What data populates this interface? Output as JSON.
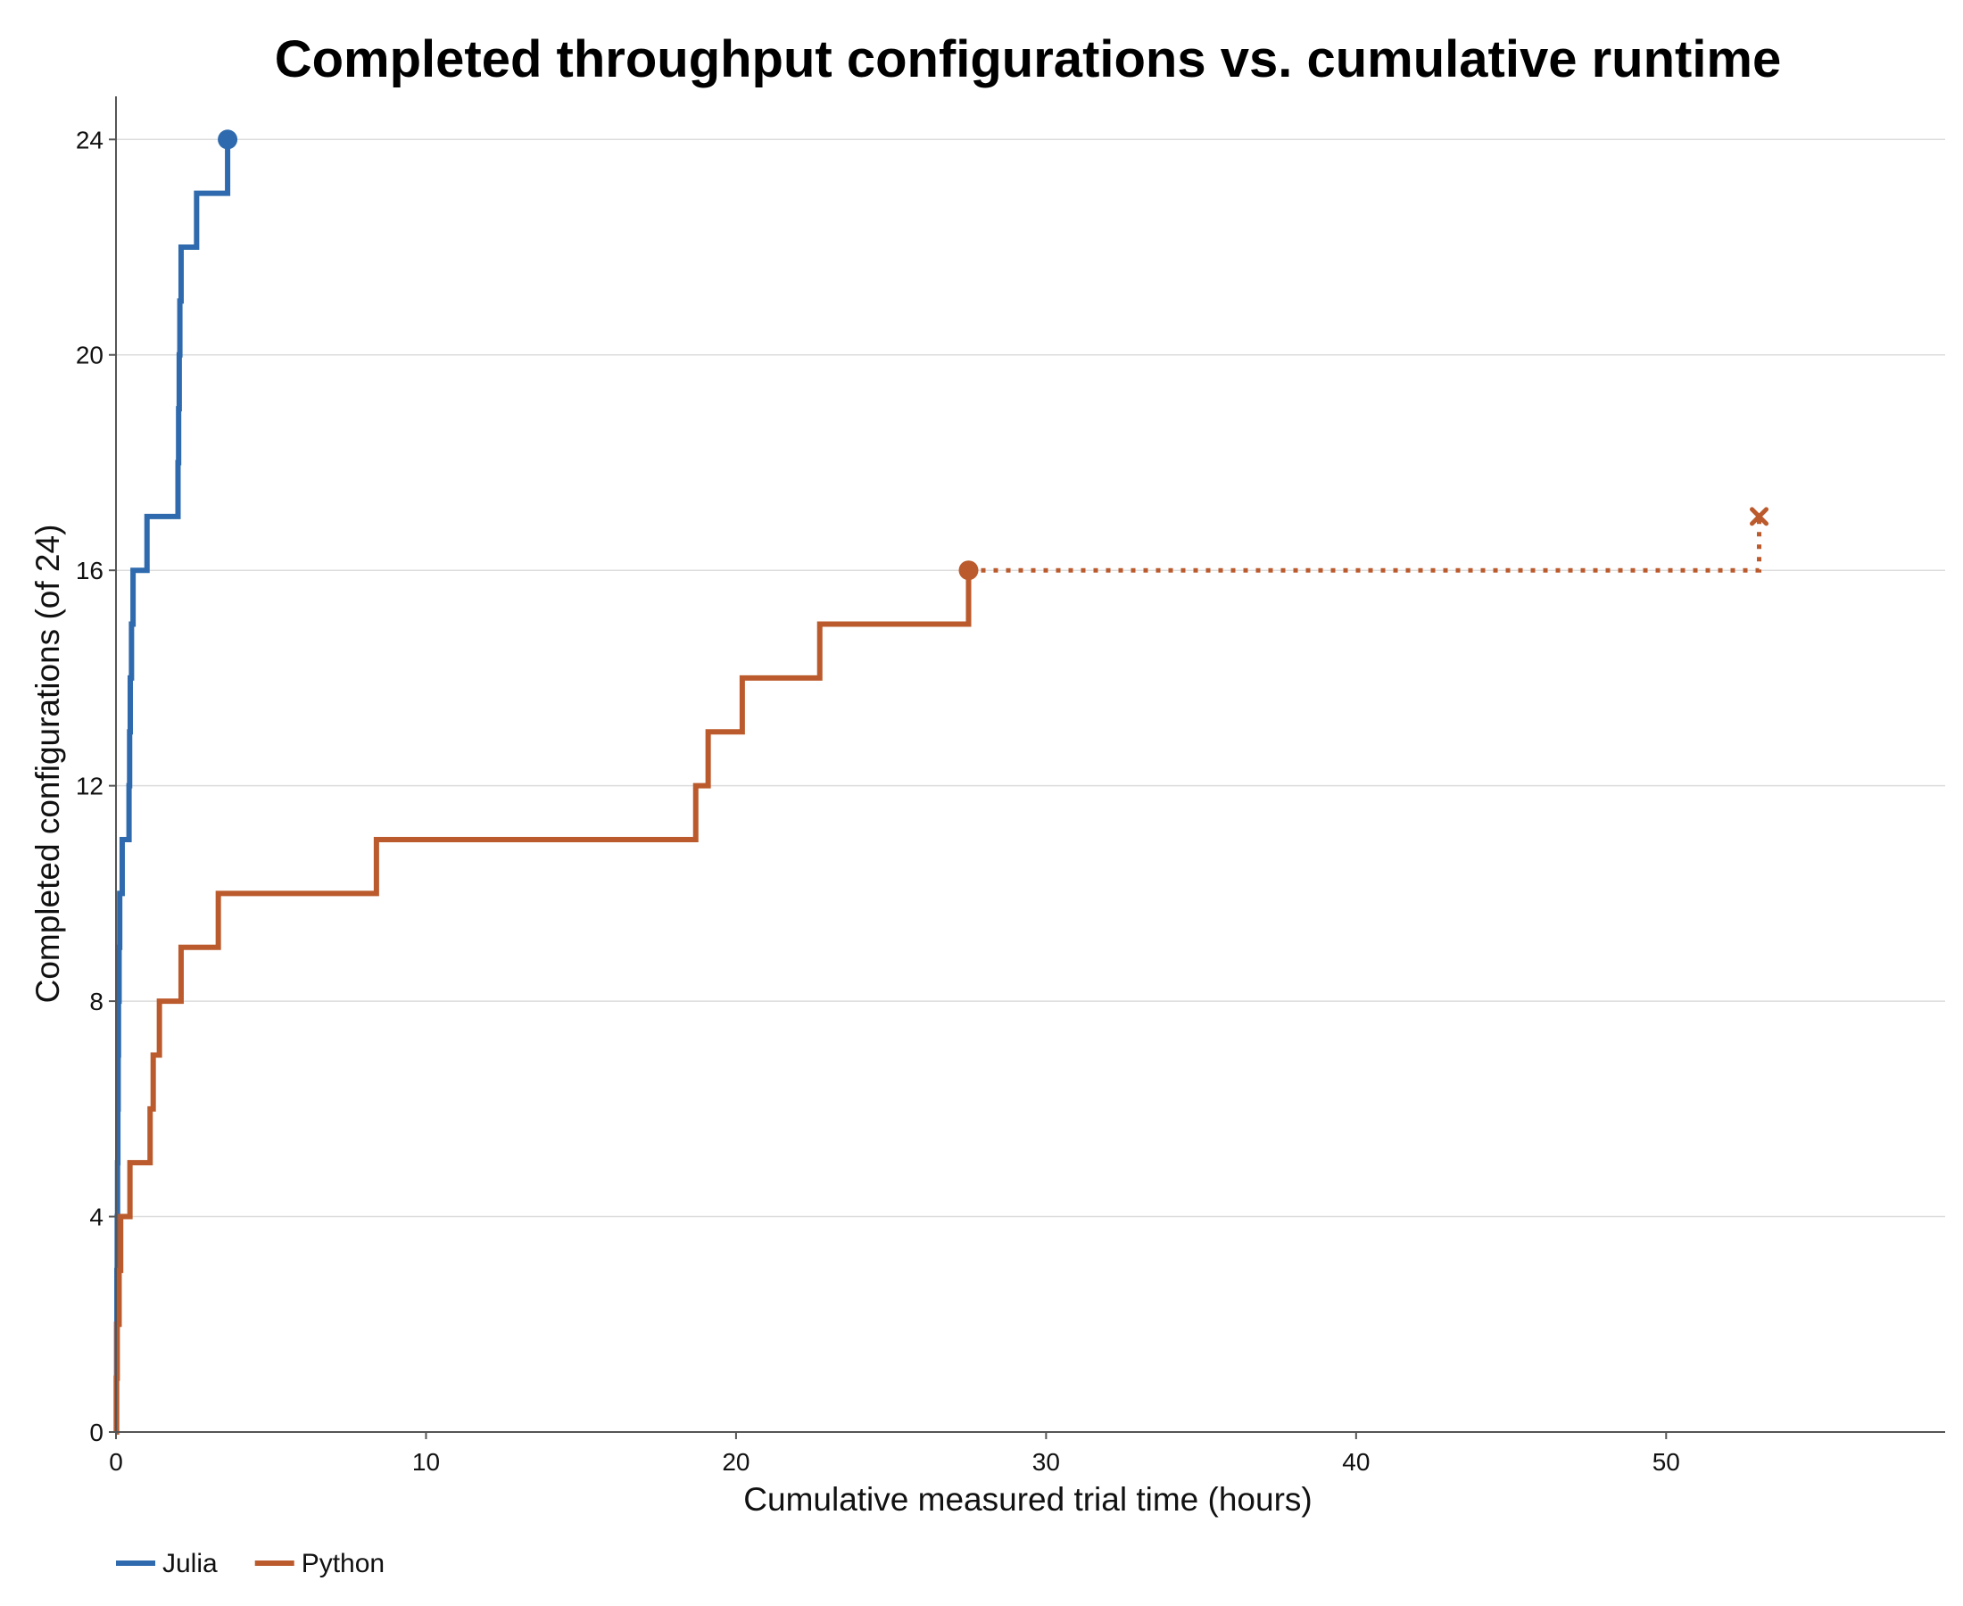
{
  "chart_data": {
    "type": "line",
    "step": true,
    "title": "Completed throughput configurations vs. cumulative runtime",
    "xlabel": "Cumulative measured trial time (hours)",
    "ylabel": "Completed configurations (of 24)",
    "xlim": [
      0,
      59
    ],
    "ylim": [
      0,
      24.8
    ],
    "xticks": [
      0,
      10,
      20,
      30,
      40,
      50
    ],
    "yticks": [
      0,
      4,
      8,
      12,
      16,
      20,
      24
    ],
    "grid": "horizontal",
    "legend_position": "bottom-left",
    "series": [
      {
        "name": "Julia",
        "color": "#2e6aad",
        "points": [
          [
            0,
            0
          ],
          [
            0.01,
            1
          ],
          [
            0.02,
            2
          ],
          [
            0.03,
            3
          ],
          [
            0.04,
            4
          ],
          [
            0.05,
            5
          ],
          [
            0.06,
            6
          ],
          [
            0.07,
            7
          ],
          [
            0.08,
            8
          ],
          [
            0.1,
            9
          ],
          [
            0.12,
            10
          ],
          [
            0.2,
            11
          ],
          [
            0.42,
            12
          ],
          [
            0.44,
            13
          ],
          [
            0.46,
            14
          ],
          [
            0.5,
            15
          ],
          [
            0.55,
            16
          ],
          [
            1.0,
            17
          ],
          [
            2.0,
            18
          ],
          [
            2.02,
            19
          ],
          [
            2.04,
            20
          ],
          [
            2.06,
            21
          ],
          [
            2.1,
            22
          ],
          [
            2.6,
            23
          ],
          [
            3.6,
            24
          ]
        ],
        "end_marker": "circle",
        "end": [
          3.6,
          24
        ]
      },
      {
        "name": "Python",
        "color": "#bb5a2c",
        "points": [
          [
            0,
            0
          ],
          [
            0.02,
            1
          ],
          [
            0.04,
            2
          ],
          [
            0.1,
            3
          ],
          [
            0.15,
            4
          ],
          [
            0.45,
            5
          ],
          [
            1.1,
            6
          ],
          [
            1.2,
            7
          ],
          [
            1.4,
            8
          ],
          [
            2.1,
            9
          ],
          [
            3.3,
            10
          ],
          [
            8.4,
            11
          ],
          [
            18.7,
            12
          ],
          [
            19.1,
            13
          ],
          [
            20.2,
            14
          ],
          [
            22.7,
            15
          ],
          [
            27.5,
            16
          ]
        ],
        "end_marker": "circle",
        "end": [
          27.5,
          16
        ]
      }
    ],
    "annotations": [
      {
        "type": "dotted-extension",
        "series": "Python",
        "points": [
          [
            27.5,
            16
          ],
          [
            53.0,
            16
          ],
          [
            53.0,
            17
          ]
        ],
        "end_marker": "x",
        "end": [
          53.0,
          17
        ]
      }
    ]
  }
}
